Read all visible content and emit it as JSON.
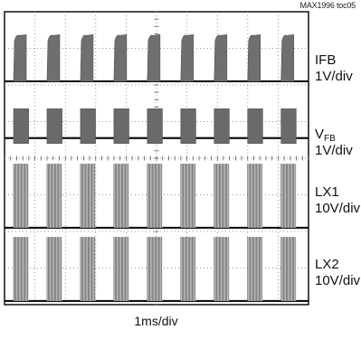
{
  "figure_id": "MAX1996 toc05",
  "chart_data": {
    "type": "oscilloscope",
    "grid": {
      "divisions_x": 10,
      "divisions_y": 8,
      "minor_ticks": true
    },
    "time_scale": "1ms/div",
    "approx_period_div": 1.1,
    "channels": [
      {
        "id": "ifb",
        "name": "IFB",
        "name_sub": "",
        "scale": "1V/div",
        "waveform": "ramp-pulse",
        "low_level_div": 0.1,
        "high_level_div": 1.4,
        "duty": 0.38
      },
      {
        "id": "vfb",
        "name": "V",
        "name_sub": "FB",
        "scale": "1V/div",
        "waveform": "square-pulse",
        "low_level_div": 0.55,
        "high_level_div": 1.35,
        "duty": 0.45
      },
      {
        "id": "lx1",
        "name": "LX1",
        "name_sub": "",
        "scale": "10V/div",
        "waveform": "switching-burst",
        "low_level_div": 0.1,
        "high_level_div": 1.85,
        "duty": 0.45
      },
      {
        "id": "lx2",
        "name": "LX2",
        "name_sub": "",
        "scale": "10V/div",
        "waveform": "switching-burst",
        "low_level_div": 0.1,
        "high_level_div": 1.85,
        "duty": 0.45
      }
    ]
  }
}
